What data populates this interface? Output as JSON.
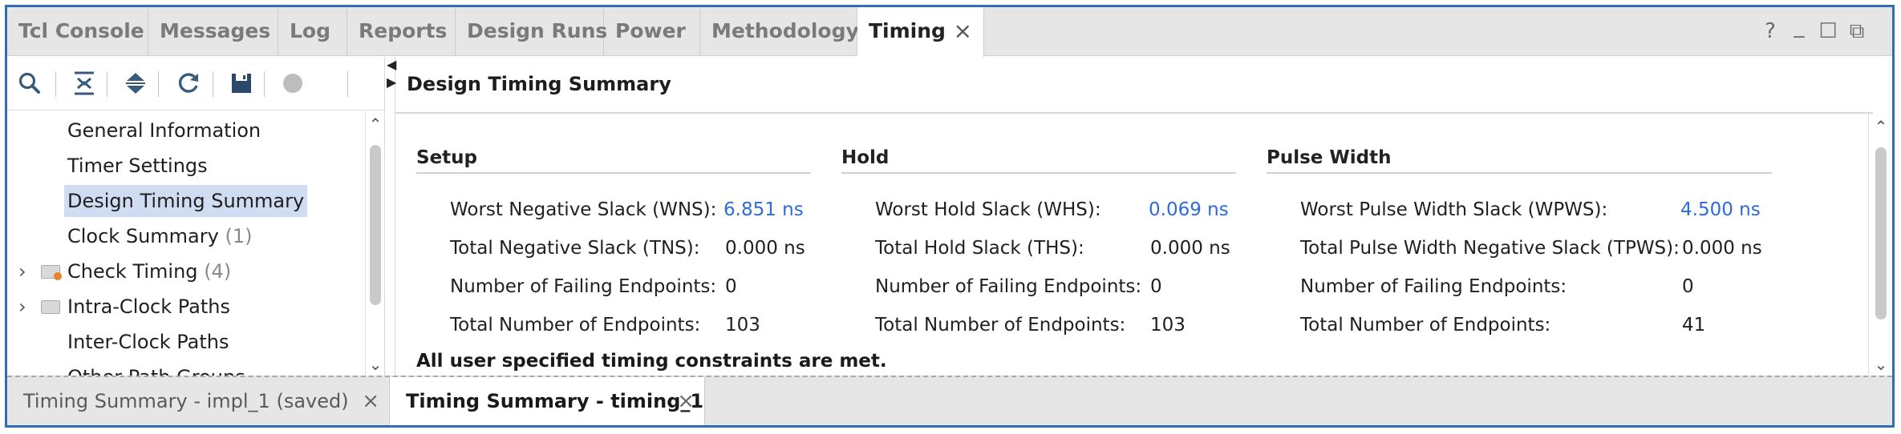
{
  "tabs": [
    {
      "label": "Tcl Console"
    },
    {
      "label": "Messages"
    },
    {
      "label": "Log"
    },
    {
      "label": "Reports"
    },
    {
      "label": "Design Runs"
    },
    {
      "label": "Power"
    },
    {
      "label": "Methodology"
    },
    {
      "label": "Timing",
      "active": true,
      "close": "×"
    }
  ],
  "window_controls": {
    "help": "?",
    "minimize": "_",
    "maximize": "☐",
    "restore": "⧉"
  },
  "toolbar": {
    "icons": [
      "search-icon",
      "collapse-all-icon",
      "expand-all-icon",
      "refresh-icon",
      "save-icon",
      "stop-icon"
    ]
  },
  "tree": {
    "items": [
      {
        "label": "General Information",
        "count": ""
      },
      {
        "label": "Timer Settings",
        "count": ""
      },
      {
        "label": "Design Timing Summary",
        "count": "",
        "selected": true
      },
      {
        "label": "Clock Summary",
        "count": "(1)"
      },
      {
        "label": "Check Timing",
        "count": "(4)",
        "expandable": true,
        "icon": "warning-folder-icon"
      },
      {
        "label": "Intra-Clock Paths",
        "count": "",
        "expandable": true,
        "icon": "folder-icon"
      },
      {
        "label": "Inter-Clock Paths",
        "count": ""
      },
      {
        "label": "Other Path Groups",
        "count": ""
      }
    ]
  },
  "content": {
    "title": "Design Timing Summary",
    "setup": {
      "title": "Setup",
      "rows": [
        {
          "label": "Worst Negative Slack (WNS):",
          "value": "6.851 ns",
          "link": true
        },
        {
          "label": "Total Negative Slack (TNS):",
          "value": "0.000 ns",
          "link": false
        },
        {
          "label": "Number of Failing Endpoints:",
          "value": "0",
          "link": false
        },
        {
          "label": "Total Number of Endpoints:",
          "value": "103",
          "link": false
        }
      ]
    },
    "hold": {
      "title": "Hold",
      "rows": [
        {
          "label": "Worst Hold Slack (WHS):",
          "value": "0.069 ns",
          "link": true
        },
        {
          "label": "Total Hold Slack (THS):",
          "value": "0.000 ns",
          "link": false
        },
        {
          "label": "Number of Failing Endpoints:",
          "value": "0",
          "link": false
        },
        {
          "label": "Total Number of Endpoints:",
          "value": "103",
          "link": false
        }
      ]
    },
    "pulse": {
      "title": "Pulse Width",
      "rows": [
        {
          "label": "Worst Pulse Width Slack (WPWS):",
          "value": "4.500 ns",
          "link": true
        },
        {
          "label": "Total Pulse Width Negative Slack (TPWS):",
          "value": "0.000 ns",
          "link": false
        },
        {
          "label": "Number of Failing Endpoints:",
          "value": "0",
          "link": false
        },
        {
          "label": "Total Number of Endpoints:",
          "value": "41",
          "link": false
        }
      ]
    },
    "message": "All user specified timing constraints are met."
  },
  "bottom_tabs": [
    {
      "label": "Timing Summary - impl_1 (saved)",
      "close": "×"
    },
    {
      "label": "Timing Summary - timing_1",
      "close": "×",
      "active": true
    }
  ],
  "colors": {
    "accent": "#2f6db5",
    "link": "#2f6ad8",
    "selection": "#cfdcf2"
  }
}
